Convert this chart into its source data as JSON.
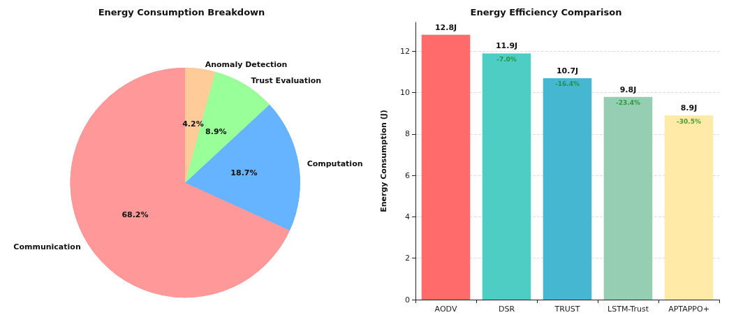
{
  "chart_data": [
    {
      "type": "pie",
      "title": "Energy Consumption Breakdown",
      "categories": [
        "Communication",
        "Computation",
        "Trust Evaluation",
        "Anomaly Detection"
      ],
      "values": [
        68.2,
        18.7,
        8.9,
        4.2
      ],
      "colors": [
        "#ff9999",
        "#66b3ff",
        "#99ff99",
        "#ffcc99"
      ],
      "value_labels": [
        "68.2%",
        "18.7%",
        "8.9%",
        "4.2%"
      ]
    },
    {
      "type": "bar",
      "title": "Energy Efficiency Comparison",
      "ylabel": "Energy Consumption (J)",
      "categories": [
        "AODV",
        "DSR",
        "TRUST",
        "LSTM-Trust",
        "APTAPPO+"
      ],
      "values": [
        12.8,
        11.9,
        10.7,
        9.8,
        8.9
      ],
      "colors": [
        "#ff6b6b",
        "#4ecdc4",
        "#45b7d1",
        "#96ceb4",
        "#ffeaa7"
      ],
      "value_labels": [
        "12.8J",
        "11.9J",
        "10.7J",
        "9.8J",
        "8.9J"
      ],
      "ylim": [
        0,
        13.4
      ],
      "yticks": [
        0,
        2,
        4,
        6,
        8,
        10,
        12
      ],
      "grid": "y",
      "annotations": [
        {
          "text": "-7.0%",
          "x": "DSR",
          "y": 11.9
        },
        {
          "text": "-16.4%",
          "x": "TRUST",
          "y": 10.7
        },
        {
          "text": "-23.4%",
          "x": "LSTM-Trust",
          "y": 9.8
        },
        {
          "text": "-30.5%",
          "x": "APTAPPO+",
          "y": 8.9
        }
      ]
    }
  ]
}
